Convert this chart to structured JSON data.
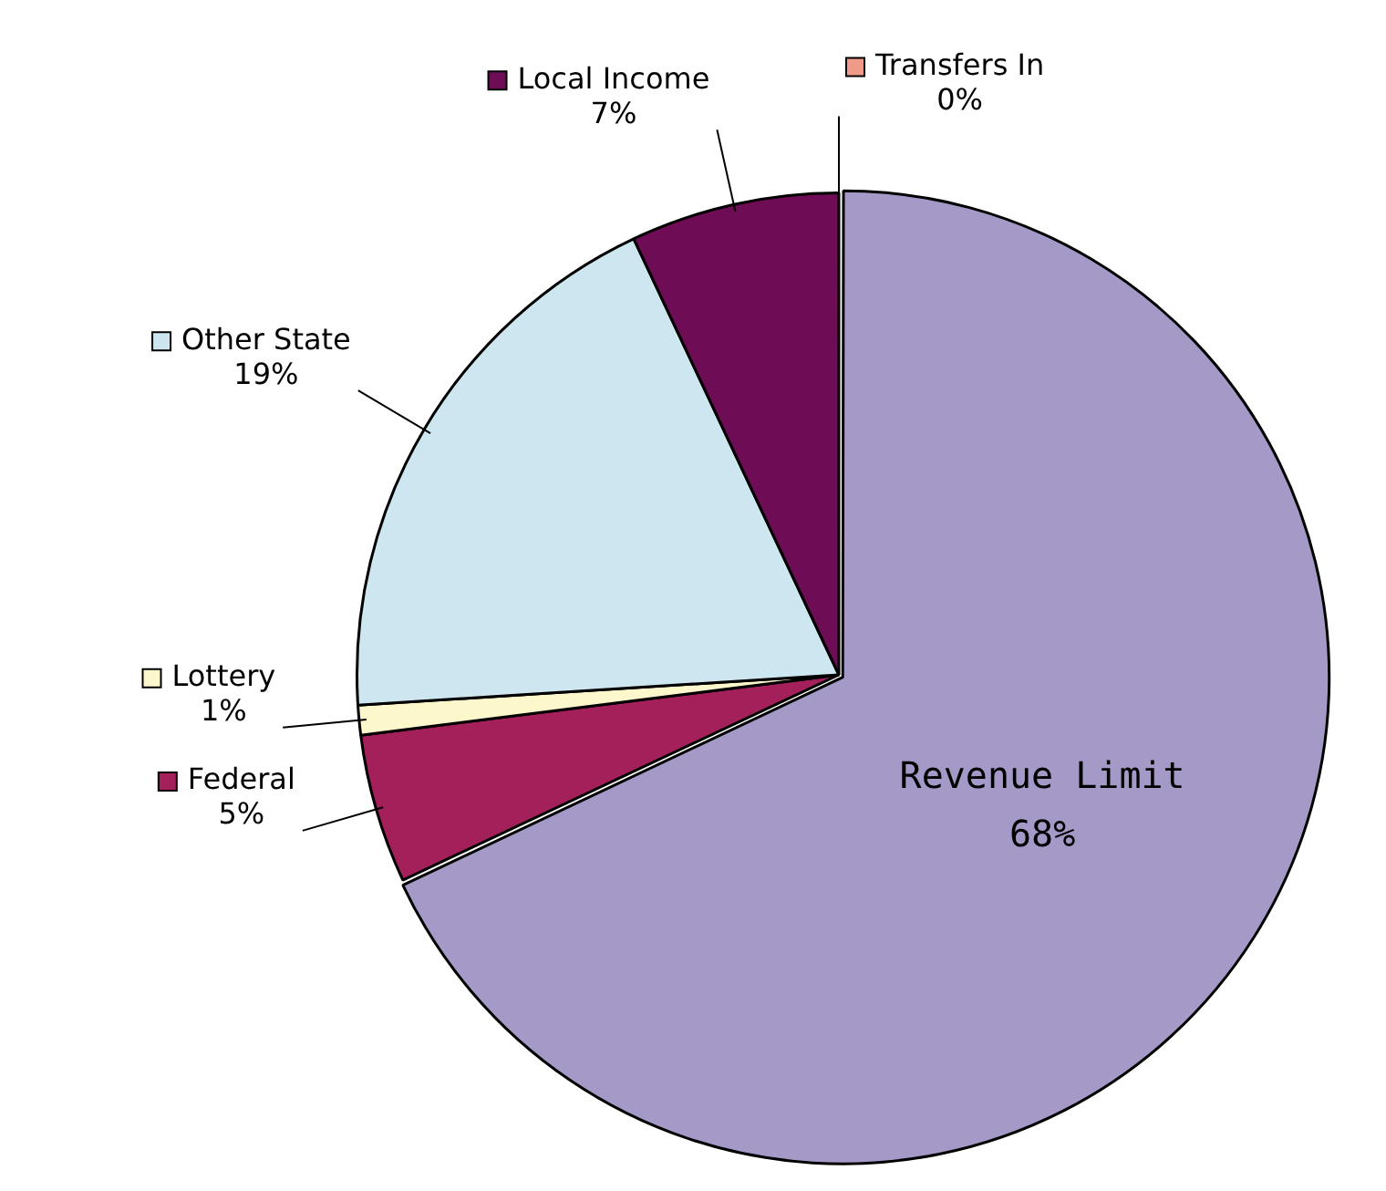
{
  "chart_data": {
    "type": "pie",
    "categories": [
      "Transfers In",
      "Revenue Limit",
      "Federal",
      "Lottery",
      "Other State",
      "Local Income"
    ],
    "values": [
      0,
      68,
      5,
      1,
      19,
      7
    ],
    "colors": [
      "#f09a8a",
      "#a599c8",
      "#a3205a",
      "#fdf7cc",
      "#cde6ef",
      "#6e0c55"
    ],
    "value_labels": [
      "0%",
      "68%",
      "5%",
      "1%",
      "19%",
      "7%"
    ],
    "legend": "left"
  }
}
